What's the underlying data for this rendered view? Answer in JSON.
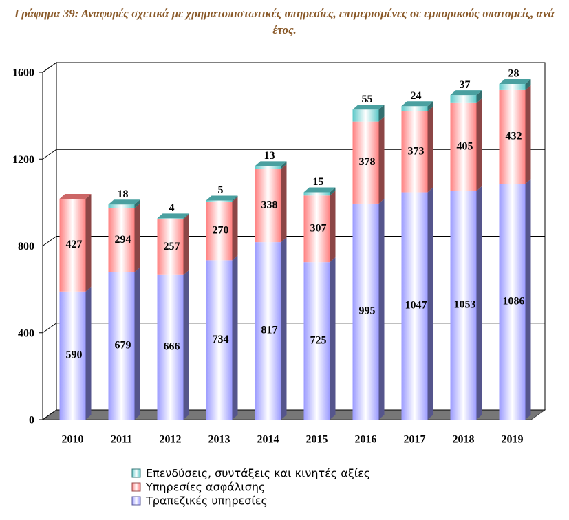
{
  "chart_data": {
    "type": "bar",
    "stacked": true,
    "title": "Γράφημα 39: Αναφορές σχετικά με χρηματοπιστωτικές υπηρεσίες, επιμερισμένες σε εμπορικούς υποτομείς, ανά έτος.",
    "categories": [
      "2010",
      "2011",
      "2012",
      "2013",
      "2014",
      "2015",
      "2016",
      "2017",
      "2018",
      "2019"
    ],
    "series": [
      {
        "name": "Τραπεζικές υπηρεσίες",
        "color": "#9a9aff",
        "values": [
          590,
          679,
          666,
          734,
          817,
          725,
          995,
          1047,
          1053,
          1086
        ]
      },
      {
        "name": "Υπηρεσίες ασφάλισης",
        "color": "#ff7f7f",
        "values": [
          427,
          294,
          257,
          270,
          338,
          307,
          378,
          373,
          405,
          432
        ]
      },
      {
        "name": "Επενδύσεις, συντάξεις και κινητές αξίες",
        "color": "#5cc8c8",
        "values": [
          null,
          18,
          4,
          5,
          13,
          15,
          55,
          24,
          37,
          28
        ]
      }
    ],
    "ylim": [
      0,
      1600
    ],
    "yticks": [
      0,
      400,
      800,
      1200,
      1600
    ],
    "grid": true
  }
}
